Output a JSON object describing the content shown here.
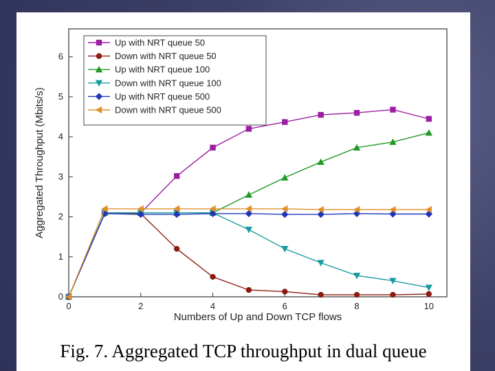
{
  "caption": "Fig. 7. Aggregated TCP throughput in dual queue",
  "chart_data": {
    "type": "line",
    "title": "",
    "xlabel": "Numbers of Up and Down TCP flows",
    "ylabel": "Aggregated Throughput (Mbits/s)",
    "xlim": [
      0,
      10.5
    ],
    "ylim": [
      0,
      6.7
    ],
    "xticks": [
      0,
      2,
      4,
      6,
      8,
      10
    ],
    "yticks": [
      0,
      1,
      2,
      3,
      4,
      5,
      6
    ],
    "grid": false,
    "legend_position": "top-left",
    "x": [
      0,
      1,
      2,
      3,
      4,
      5,
      6,
      7,
      8,
      9,
      10
    ],
    "series": [
      {
        "name": "Up with NRT queue 50",
        "color": "#9b1fa3",
        "marker": "square",
        "values": [
          0,
          2.1,
          2.1,
          3.02,
          3.73,
          4.2,
          4.37,
          4.55,
          4.6,
          4.68,
          4.45
        ]
      },
      {
        "name": "Down with NRT queue 50",
        "color": "#8b1a12",
        "marker": "circle",
        "values": [
          0,
          2.1,
          2.08,
          1.2,
          0.5,
          0.17,
          0.13,
          0.05,
          0.05,
          0.05,
          0.07
        ]
      },
      {
        "name": "Up with NRT queue 100",
        "color": "#1f9a24",
        "marker": "triangle-up",
        "values": [
          0,
          2.1,
          2.1,
          2.1,
          2.1,
          2.55,
          2.98,
          3.37,
          3.73,
          3.87,
          4.1
        ]
      },
      {
        "name": "Down with NRT queue 100",
        "color": "#1a9aa0",
        "marker": "triangle-down",
        "values": [
          0,
          2.1,
          2.1,
          2.1,
          2.1,
          1.68,
          1.2,
          0.85,
          0.53,
          0.4,
          0.23
        ]
      },
      {
        "name": "Up with NRT queue 500",
        "color": "#1f35b8",
        "marker": "diamond",
        "values": [
          0,
          2.08,
          2.06,
          2.06,
          2.08,
          2.08,
          2.06,
          2.06,
          2.08,
          2.07,
          2.07
        ]
      },
      {
        "name": "Down with NRT queue 500",
        "color": "#e0902a",
        "marker": "triangle-left",
        "values": [
          0,
          2.2,
          2.2,
          2.2,
          2.2,
          2.2,
          2.2,
          2.18,
          2.18,
          2.18,
          2.18
        ]
      }
    ]
  }
}
